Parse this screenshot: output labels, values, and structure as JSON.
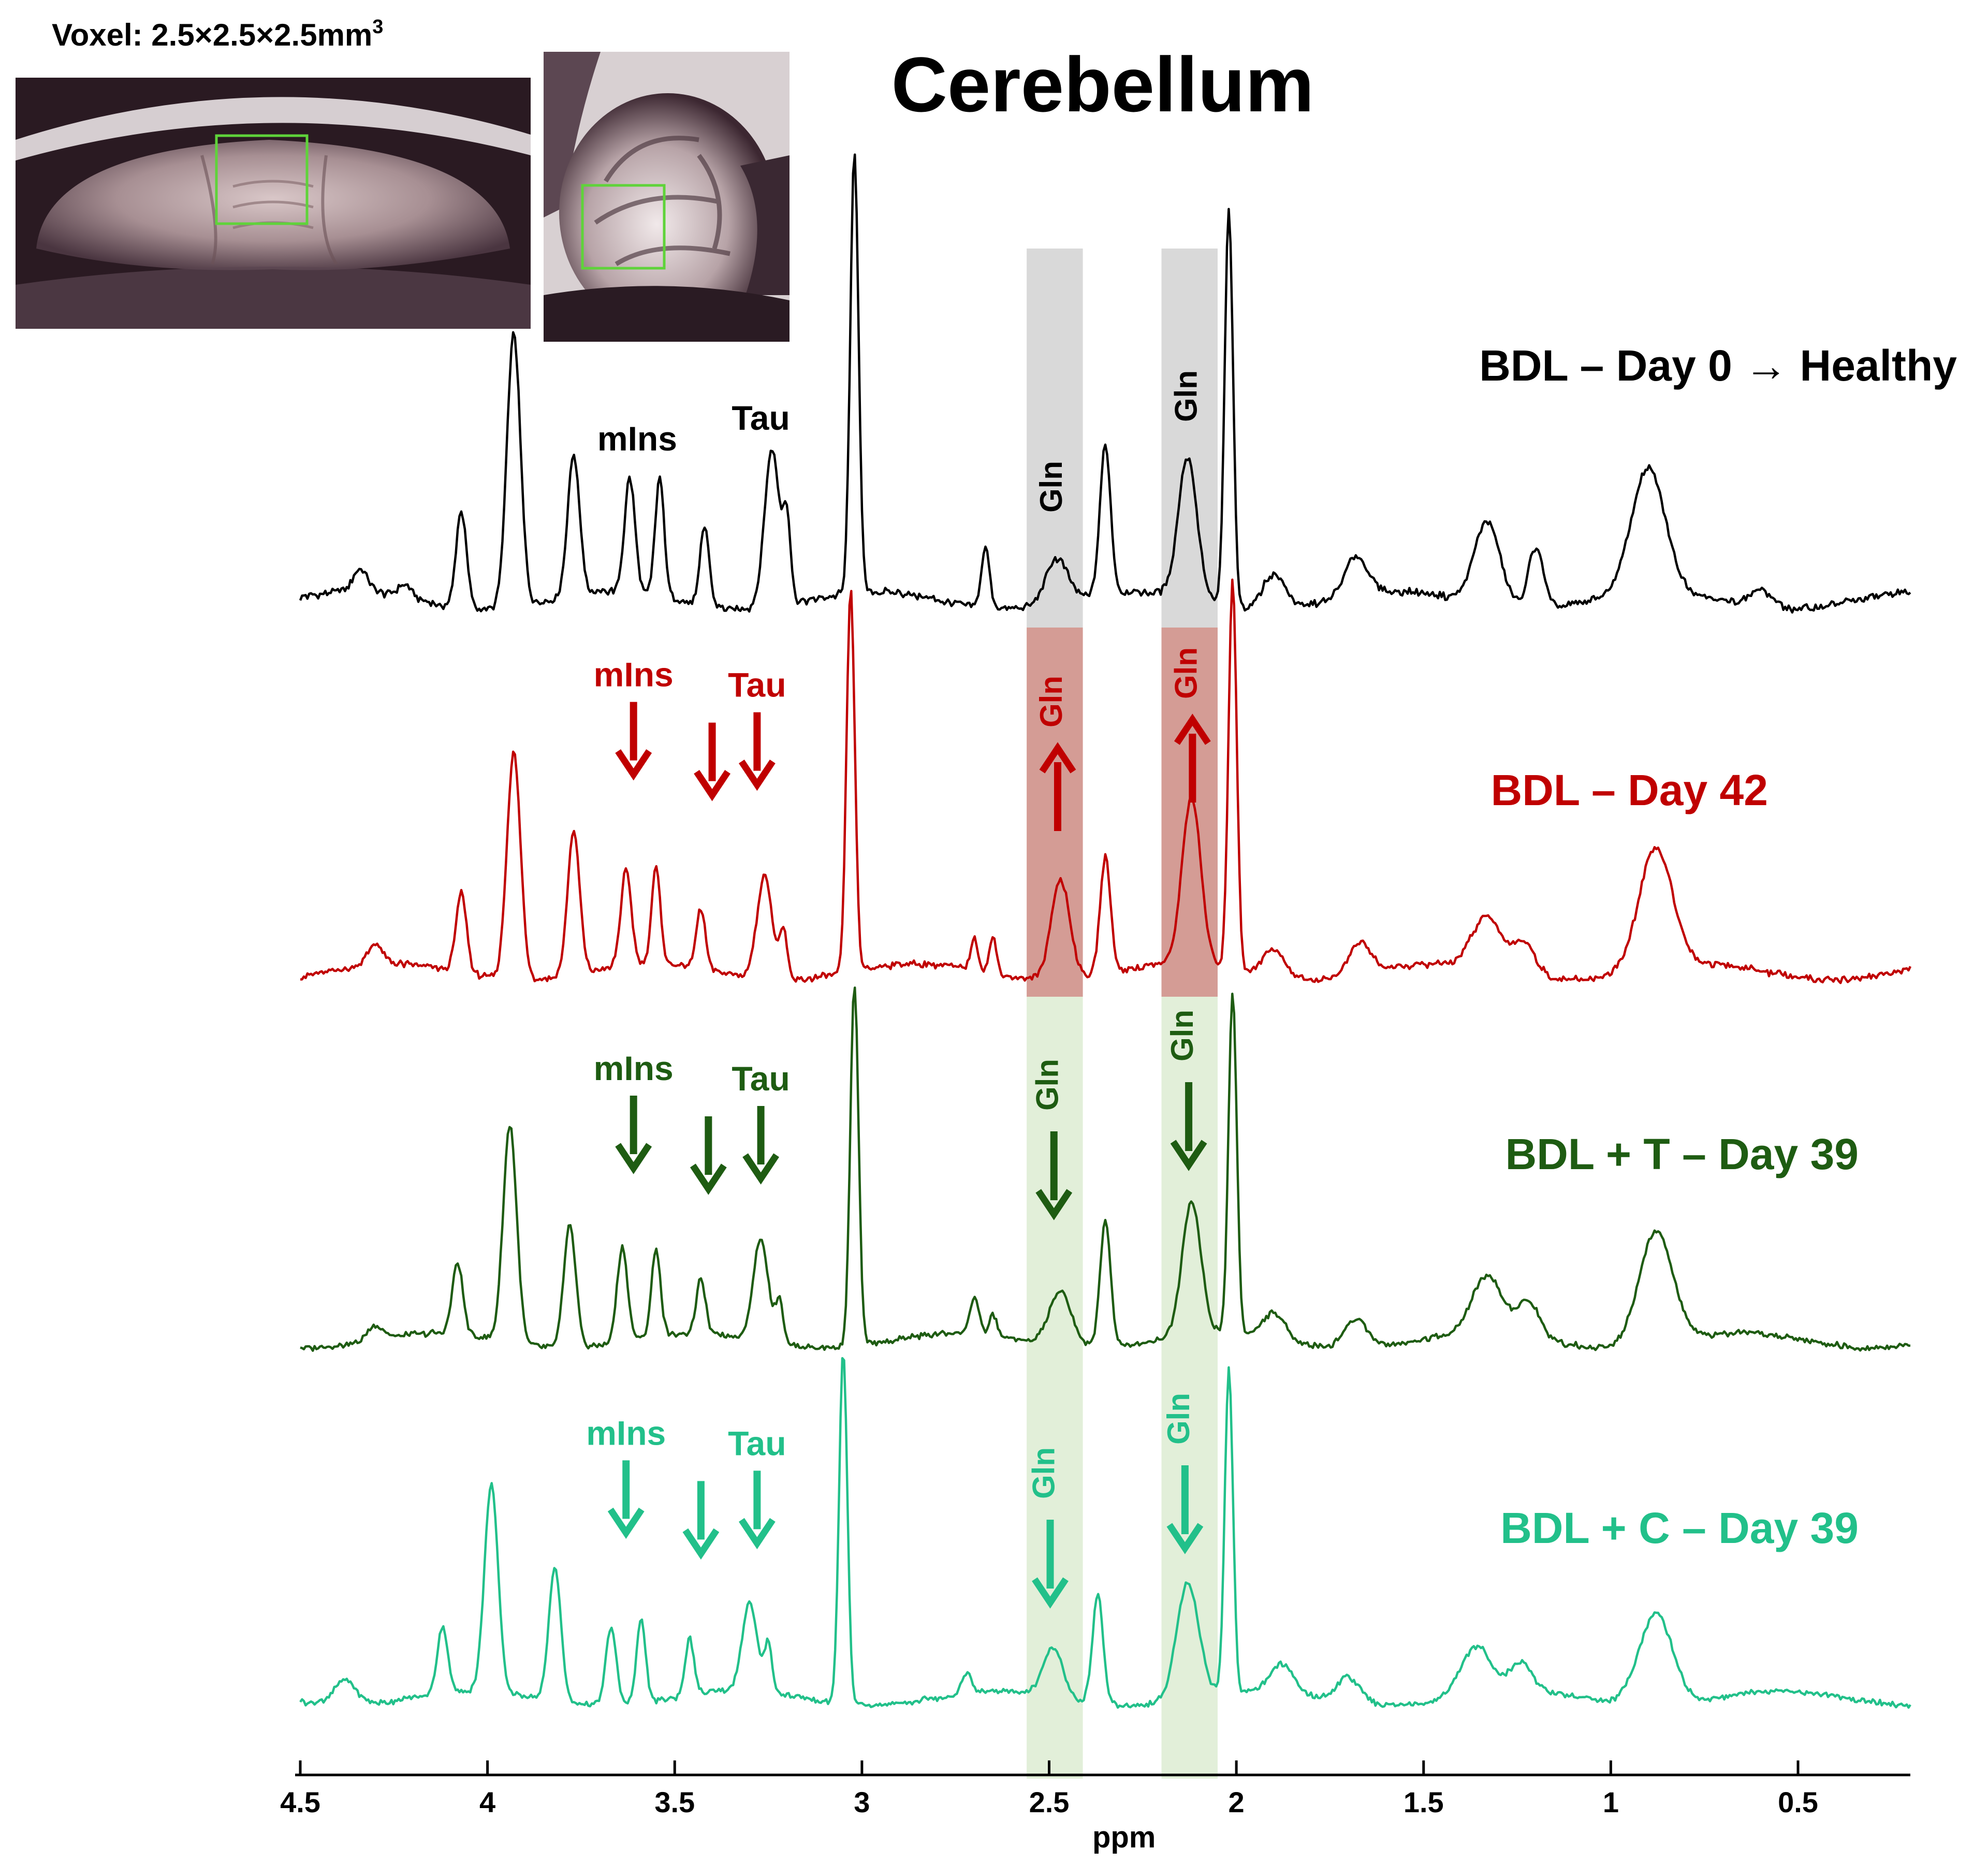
{
  "figure": {
    "voxel_label": "Voxel: 2.5×2.5×2.5mm",
    "voxel_superscript": "3",
    "title": "Cerebellum"
  },
  "colors": {
    "healthy": "#000000",
    "day42": "#c00000",
    "t39": "#1e5c12",
    "c39": "#22c08a",
    "band_healthy": "#d9d9d9",
    "band_day42": "#d49c95",
    "band_day39": "#e2efd9",
    "voxel_box": "#5fd33a"
  },
  "chart_data": {
    "type": "line",
    "title": "Cerebellum",
    "xlabel": "ppm",
    "ylabel": "",
    "xlim": [
      4.5,
      0.2
    ],
    "x_reversed": true,
    "xticks": [
      4.5,
      4,
      3.5,
      3,
      2.5,
      2,
      1.5,
      1,
      0.5
    ],
    "xtick_labels": [
      "4.5",
      "4",
      "3.5",
      "3",
      "2.5",
      "2",
      "1.5",
      "1",
      "0.5"
    ],
    "highlight_bands_ppm": [
      [
        2.56,
        2.41
      ],
      [
        2.2,
        2.05
      ]
    ],
    "series": [
      {
        "name": "BDL – Day 0 → Healthy",
        "label_parts": [
          "BDL – Day 0 ",
          "→",
          " Healthy"
        ],
        "color": "#000000",
        "metabolite_labels": [
          {
            "text": "mIns",
            "ppm": 3.6,
            "arrow": "none"
          },
          {
            "text": "Tau",
            "ppm": 3.27,
            "arrow": "none"
          }
        ],
        "gln_labels": [
          {
            "text": "Gln",
            "ppm": 2.48,
            "arrow": "none"
          },
          {
            "text": "Gln",
            "ppm": 2.12,
            "arrow": "none"
          }
        ],
        "baseline": 0.03,
        "peaks": [
          [
            4.34,
            0.05,
            0.02
          ],
          [
            4.22,
            0.03,
            0.02
          ],
          [
            4.07,
            0.22,
            0.014
          ],
          [
            3.93,
            0.62,
            0.018
          ],
          [
            3.77,
            0.32,
            0.016
          ],
          [
            3.62,
            0.26,
            0.014
          ],
          [
            3.54,
            0.27,
            0.012
          ],
          [
            3.42,
            0.18,
            0.012
          ],
          [
            3.24,
            0.36,
            0.02
          ],
          [
            3.2,
            0.18,
            0.01
          ],
          [
            3.02,
            1.0,
            0.011
          ],
          [
            2.67,
            0.14,
            0.011
          ],
          [
            2.48,
            0.1,
            0.03
          ],
          [
            2.35,
            0.34,
            0.014
          ],
          [
            2.13,
            0.32,
            0.025
          ],
          [
            2.02,
            0.9,
            0.011
          ],
          [
            1.9,
            0.08,
            0.03
          ],
          [
            1.68,
            0.09,
            0.03
          ],
          [
            1.33,
            0.19,
            0.035
          ],
          [
            1.2,
            0.14,
            0.02
          ],
          [
            0.9,
            0.28,
            0.045
          ],
          [
            0.6,
            0.04,
            0.03
          ]
        ]
      },
      {
        "name": "BDL – Day 42",
        "label_parts": [
          "BDL – Day 42",
          "",
          ""
        ],
        "color": "#c00000",
        "metabolite_labels": [
          {
            "text": "mIns",
            "ppm": 3.61,
            "arrow": "down"
          },
          {
            "text": "Tau",
            "ppm": 3.28,
            "arrow": "down",
            "extra_arrow_ppm": 3.4
          }
        ],
        "gln_labels": [
          {
            "text": "Gln",
            "ppm": 2.48,
            "arrow": "up"
          },
          {
            "text": "Gln",
            "ppm": 2.12,
            "arrow": "up"
          }
        ],
        "baseline": 0.03,
        "peaks": [
          [
            4.3,
            0.05,
            0.02
          ],
          [
            4.07,
            0.2,
            0.014
          ],
          [
            3.93,
            0.57,
            0.018
          ],
          [
            3.77,
            0.36,
            0.016
          ],
          [
            3.63,
            0.24,
            0.014
          ],
          [
            3.55,
            0.24,
            0.012
          ],
          [
            3.43,
            0.15,
            0.012
          ],
          [
            3.26,
            0.26,
            0.02
          ],
          [
            3.21,
            0.12,
            0.01
          ],
          [
            3.03,
            0.96,
            0.011
          ],
          [
            2.7,
            0.08,
            0.01
          ],
          [
            2.65,
            0.09,
            0.01
          ],
          [
            2.47,
            0.25,
            0.025
          ],
          [
            2.35,
            0.29,
            0.014
          ],
          [
            2.12,
            0.42,
            0.025
          ],
          [
            2.01,
            0.98,
            0.011
          ],
          [
            1.9,
            0.07,
            0.03
          ],
          [
            1.67,
            0.08,
            0.03
          ],
          [
            1.33,
            0.13,
            0.04
          ],
          [
            1.23,
            0.08,
            0.03
          ],
          [
            0.88,
            0.3,
            0.045
          ]
        ]
      },
      {
        "name": "BDL + T – Day 39",
        "label_parts": [
          "BDL + T – Day 39",
          "",
          ""
        ],
        "color": "#1e5c12",
        "metabolite_labels": [
          {
            "text": "mIns",
            "ppm": 3.61,
            "arrow": "down"
          },
          {
            "text": "Tau",
            "ppm": 3.27,
            "arrow": "down",
            "extra_arrow_ppm": 3.41
          }
        ],
        "gln_labels": [
          {
            "text": "Gln",
            "ppm": 2.49,
            "arrow": "down"
          },
          {
            "text": "Gln",
            "ppm": 2.13,
            "arrow": "down"
          }
        ],
        "baseline": 0.03,
        "peaks": [
          [
            4.3,
            0.04,
            0.02
          ],
          [
            4.08,
            0.2,
            0.014
          ],
          [
            3.94,
            0.6,
            0.018
          ],
          [
            3.78,
            0.34,
            0.016
          ],
          [
            3.64,
            0.26,
            0.014
          ],
          [
            3.55,
            0.24,
            0.012
          ],
          [
            3.43,
            0.15,
            0.012
          ],
          [
            3.27,
            0.28,
            0.02
          ],
          [
            3.22,
            0.12,
            0.01
          ],
          [
            3.02,
            1.0,
            0.011
          ],
          [
            2.7,
            0.1,
            0.012
          ],
          [
            2.65,
            0.06,
            0.01
          ],
          [
            2.47,
            0.15,
            0.03
          ],
          [
            2.35,
            0.35,
            0.014
          ],
          [
            2.12,
            0.37,
            0.025
          ],
          [
            2.01,
            0.94,
            0.011
          ],
          [
            1.9,
            0.07,
            0.03
          ],
          [
            1.68,
            0.08,
            0.03
          ],
          [
            1.33,
            0.16,
            0.04
          ],
          [
            1.22,
            0.1,
            0.03
          ],
          [
            0.88,
            0.31,
            0.045
          ]
        ]
      },
      {
        "name": "BDL + C – Day 39",
        "label_parts": [
          "BDL + C – Day 39",
          "",
          ""
        ],
        "color": "#22c08a",
        "metabolite_labels": [
          {
            "text": "mIns",
            "ppm": 3.63,
            "arrow": "down"
          },
          {
            "text": "Tau",
            "ppm": 3.28,
            "arrow": "down",
            "extra_arrow_ppm": 3.43
          }
        ],
        "gln_labels": [
          {
            "text": "Gln",
            "ppm": 2.5,
            "arrow": "down"
          },
          {
            "text": "Gln",
            "ppm": 2.14,
            "arrow": "down"
          }
        ],
        "baseline": 0.03,
        "peaks": [
          [
            4.38,
            0.07,
            0.03
          ],
          [
            4.12,
            0.19,
            0.014
          ],
          [
            3.99,
            0.59,
            0.018
          ],
          [
            3.82,
            0.38,
            0.016
          ],
          [
            3.67,
            0.22,
            0.014
          ],
          [
            3.59,
            0.24,
            0.012
          ],
          [
            3.46,
            0.16,
            0.012
          ],
          [
            3.3,
            0.25,
            0.02
          ],
          [
            3.25,
            0.14,
            0.01
          ],
          [
            3.05,
            1.0,
            0.011
          ],
          [
            2.72,
            0.06,
            0.012
          ],
          [
            2.49,
            0.14,
            0.025
          ],
          [
            2.37,
            0.31,
            0.014
          ],
          [
            2.13,
            0.33,
            0.03
          ],
          [
            2.02,
            0.92,
            0.011
          ],
          [
            1.88,
            0.08,
            0.03
          ],
          [
            1.7,
            0.07,
            0.03
          ],
          [
            1.36,
            0.14,
            0.04
          ],
          [
            1.24,
            0.08,
            0.03
          ],
          [
            0.88,
            0.26,
            0.045
          ]
        ]
      }
    ]
  }
}
